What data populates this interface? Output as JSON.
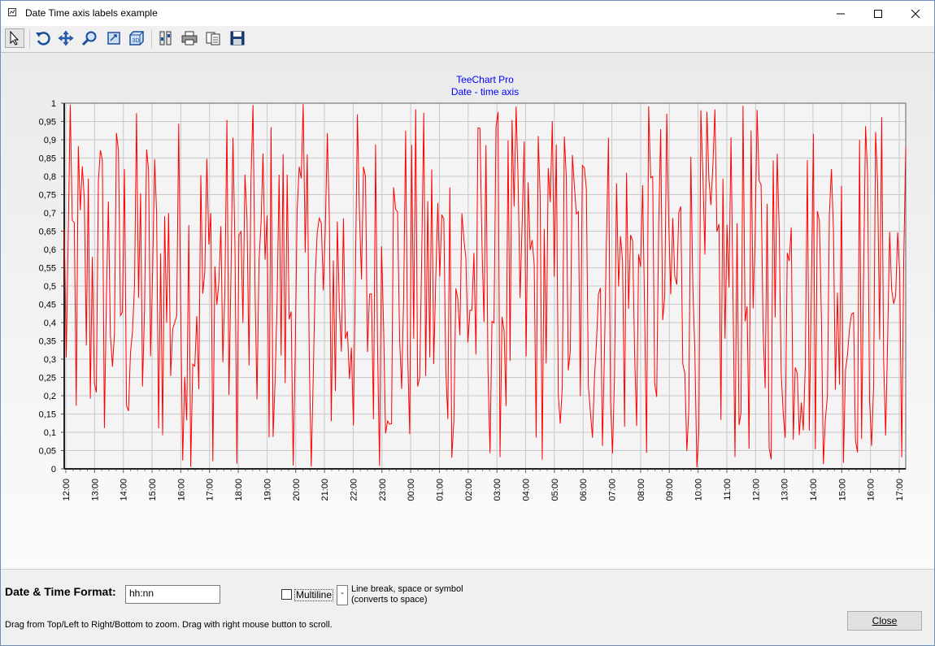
{
  "window": {
    "title": "Date Time axis labels example"
  },
  "toolbar": {
    "buttons": [
      {
        "name": "pointer-icon",
        "label": "Select"
      },
      {
        "name": "undo-zoom-icon",
        "label": "Undo zoom"
      },
      {
        "name": "move-icon",
        "label": "Move"
      },
      {
        "name": "zoom-icon",
        "label": "Zoom"
      },
      {
        "name": "rotate-2d-icon",
        "label": "2D"
      },
      {
        "name": "view-3d-icon",
        "label": "3D"
      },
      {
        "name": "editor-icon",
        "label": "Edit"
      },
      {
        "name": "print-icon",
        "label": "Print"
      },
      {
        "name": "copy-icon",
        "label": "Copy"
      },
      {
        "name": "save-icon",
        "label": "Save"
      }
    ]
  },
  "chart_data": {
    "type": "line",
    "title": "TeeChart Pro",
    "subtitle": "Date - time axis",
    "series": [
      {
        "color": "#ff0000",
        "values_generated": "random 0-1, ~400 points"
      }
    ],
    "ylim": [
      0,
      1
    ],
    "yticks": [
      "0",
      "0,05",
      "0,1",
      "0,15",
      "0,2",
      "0,25",
      "0,3",
      "0,35",
      "0,4",
      "0,45",
      "0,5",
      "0,55",
      "0,6",
      "0,65",
      "0,7",
      "0,75",
      "0,8",
      "0,85",
      "0,9",
      "0,95",
      "1"
    ],
    "xticks": [
      "12:00",
      "13:00",
      "14:00",
      "15:00",
      "16:00",
      "17:00",
      "18:00",
      "19:00",
      "20:00",
      "21:00",
      "22:00",
      "23:00",
      "00:00",
      "01:00",
      "02:00",
      "03:00",
      "04:00",
      "05:00",
      "06:00",
      "07:00",
      "08:00",
      "09:00",
      "10:00",
      "11:00",
      "12:00",
      "13:00",
      "14:00",
      "15:00",
      "16:00",
      "17:00"
    ],
    "grid": true,
    "line_color": "#ff0000",
    "title_color": "#0000ff"
  },
  "controls": {
    "format_label": "Date & Time Format:",
    "format_value": "hh:nn",
    "multiline_label": "Multiline",
    "multiline_checked": false,
    "separator_value": "-",
    "separator_label_1": "Line break, space or symbol",
    "separator_label_2": "(converts to space)",
    "hint": "Drag from Top/Left to Right/Bottom to zoom. Drag with right mouse button to scroll.",
    "close_label": "Close"
  }
}
